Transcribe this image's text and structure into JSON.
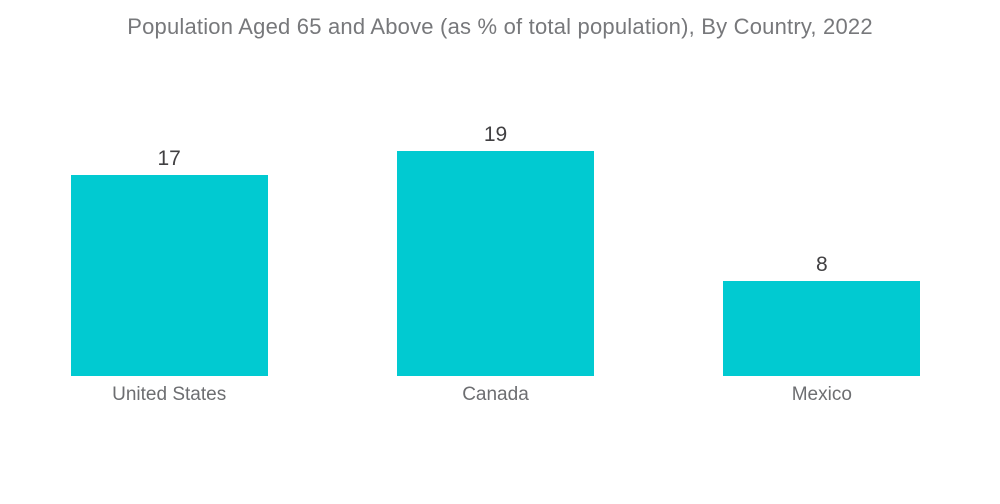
{
  "chart_data": {
    "type": "bar",
    "title": "Population Aged 65 and Above (as % of total population), By Country, 2022",
    "categories": [
      "United States",
      "Canada",
      "Mexico"
    ],
    "values": [
      17,
      19,
      8
    ],
    "xlabel": "",
    "ylabel": "",
    "ylim": [
      0,
      19
    ],
    "grid": false,
    "legend": false,
    "value_label_position": "above-bars",
    "bar_color": "#01cad1",
    "title_color": "#77787b",
    "value_label_color": "#414042",
    "category_label_color": "#6d6e71",
    "background_color": "#ffffff"
  }
}
